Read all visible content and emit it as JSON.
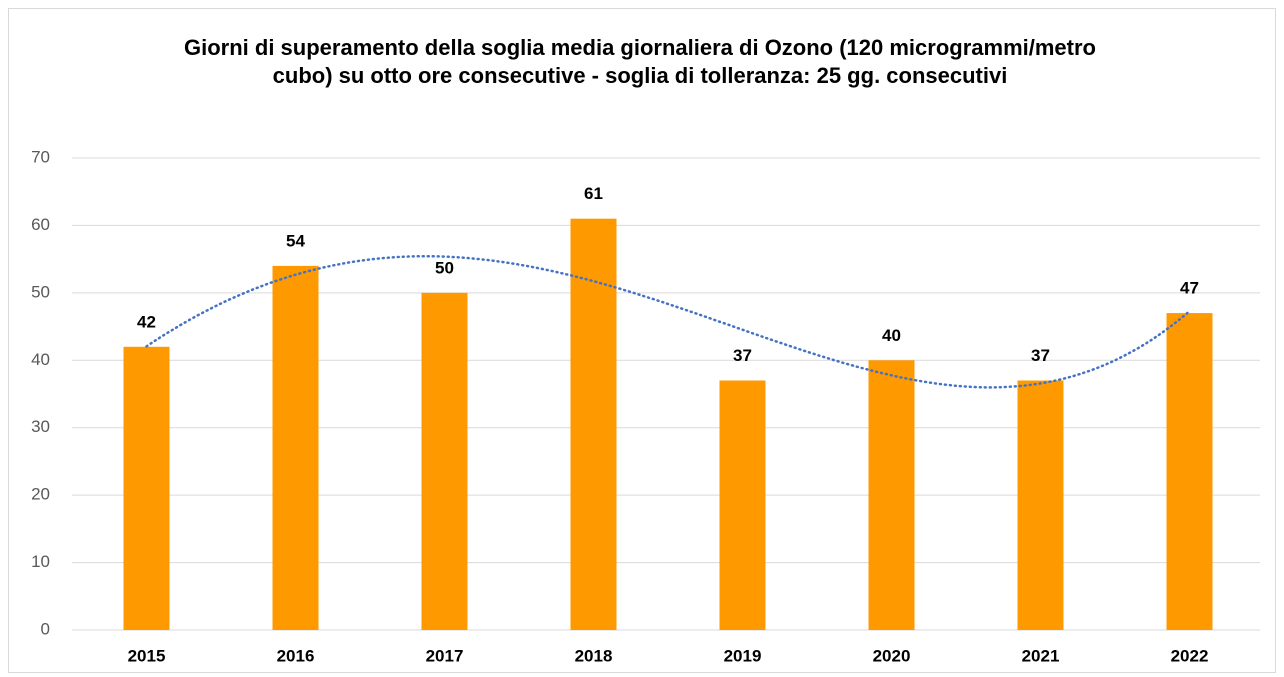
{
  "chart_data": {
    "type": "bar",
    "title": "Giorni di superamento della soglia media giornaliera di Ozono (120 microgrammi/metro cubo) su otto ore consecutive - soglia di tolleranza: 25 gg. consecutivi",
    "categories": [
      "2015",
      "2016",
      "2017",
      "2018",
      "2019",
      "2020",
      "2021",
      "2022"
    ],
    "values": [
      42,
      54,
      50,
      61,
      37,
      40,
      37,
      47
    ],
    "color": "#ff9900",
    "ylim": [
      0,
      70
    ],
    "yticks": [
      0,
      10,
      20,
      30,
      40,
      50,
      60,
      70
    ],
    "grid": true,
    "data_labels": true,
    "trendline": {
      "type": "polynomial",
      "order": 4,
      "color": "#4472c4"
    }
  }
}
